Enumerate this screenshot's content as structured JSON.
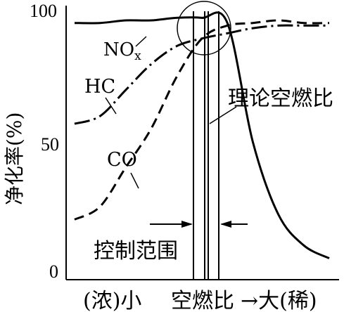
{
  "chart_data": {
    "type": "line",
    "ylabel": "净化率(%)",
    "xlabel": {
      "left": "(浓)小",
      "middle": "空燃比",
      "right": "→大(稀)"
    },
    "yticks": [
      "100",
      "50",
      "0"
    ],
    "ylim": [
      0,
      100
    ],
    "x": [
      0,
      10,
      20,
      30,
      40,
      50,
      60,
      70,
      80,
      90,
      100
    ],
    "series": [
      {
        "name": "NOx",
        "label_main": "NO",
        "label_sub": "x",
        "style": "solid",
        "values": [
          96,
          96,
          97,
          97,
          98,
          98,
          96,
          50,
          22,
          10,
          5
        ]
      },
      {
        "name": "HC",
        "style": "dash-dot",
        "values": [
          57,
          60,
          70,
          80,
          87,
          90,
          92,
          94,
          95,
          95,
          95
        ]
      },
      {
        "name": "CO",
        "style": "dashed",
        "values": [
          20,
          25,
          40,
          55,
          75,
          90,
          95,
          96,
          97,
          96,
          96
        ]
      }
    ],
    "annotations": {
      "stoich_label": "理论空燃比",
      "control_range_label": "控制范围"
    }
  },
  "colors": {
    "line": "#000000",
    "background": "#ffffff"
  }
}
